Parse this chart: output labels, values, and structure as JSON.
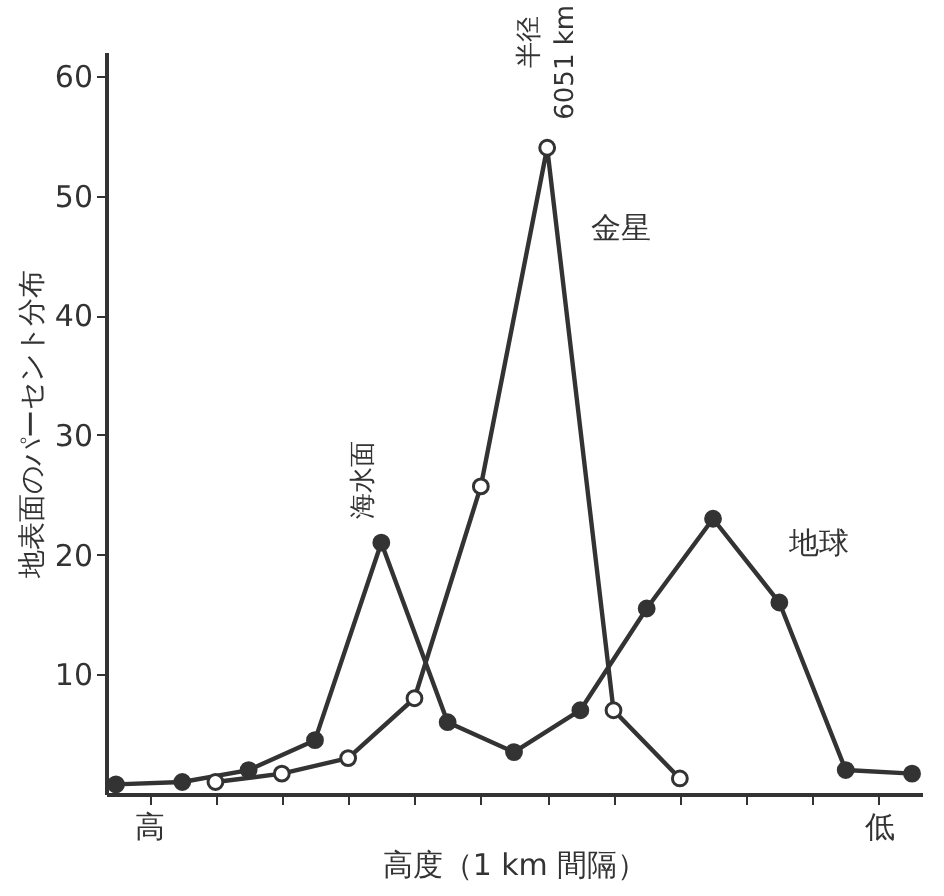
{
  "chart_data": {
    "type": "line",
    "xlabel": "高度（1 km 間隔）",
    "ylabel": "地表面のパーセント分布",
    "categories": [
      null,
      "高",
      null,
      null,
      null,
      null,
      null,
      null,
      null,
      null,
      null,
      null,
      null,
      null,
      null,
      null,
      null,
      null,
      null,
      null,
      null,
      null,
      null,
      "低",
      null
    ],
    "ylim": [
      0,
      62
    ],
    "yticks": [
      10,
      20,
      30,
      40,
      50,
      60
    ],
    "grid": false,
    "marker": "circle",
    "line_style": "solid",
    "series": [
      {
        "name": "地球",
        "color": "#333333",
        "values": [
          0.8,
          null,
          1,
          null,
          2,
          null,
          4.5,
          null,
          21,
          null,
          6,
          null,
          3.5,
          null,
          7,
          null,
          15.5,
          null,
          23,
          null,
          16,
          null,
          2,
          null,
          1.7
        ]
      },
      {
        "name": "金星",
        "color": "#333333",
        "values": [
          null,
          null,
          null,
          1,
          null,
          1.7,
          null,
          3,
          null,
          8,
          null,
          25.7,
          null,
          54,
          null,
          7,
          null,
          1.3,
          null,
          null,
          null,
          null,
          null,
          null,
          null
        ]
      }
    ],
    "annotations": [
      "海水面",
      "半径",
      "6051 km"
    ]
  }
}
